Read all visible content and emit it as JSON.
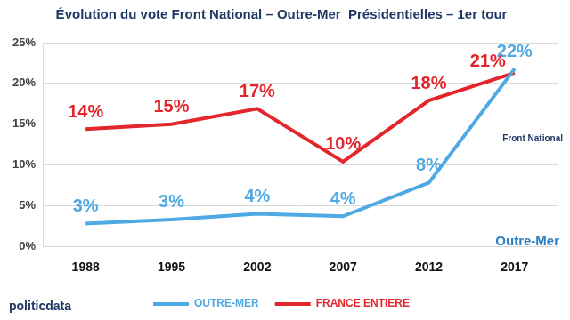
{
  "chart_data": {
    "type": "line",
    "title": "Évolution du vote Front National – Outre-Mer  Présidentielles – 1er tour",
    "categories": [
      "1988",
      "1995",
      "2002",
      "2007",
      "2012",
      "2017"
    ],
    "series": [
      {
        "name": "OUTRE-MER",
        "color": "#4fa9e3",
        "values": [
          2.8,
          3.3,
          4.0,
          3.7,
          7.8,
          21.8
        ],
        "value_labels": [
          "3%",
          "3%",
          "4%",
          "4%",
          "8%",
          "22%"
        ]
      },
      {
        "name": "FRANCE ENTIERE",
        "color": "#e3262c",
        "values": [
          14.4,
          15.0,
          16.9,
          10.4,
          17.9,
          21.3
        ],
        "value_labels": [
          "14%",
          "15%",
          "17%",
          "10%",
          "18%",
          "21%"
        ]
      }
    ],
    "ylim": [
      0,
      25
    ],
    "yticks": [
      {
        "value": 0,
        "label": "0%"
      },
      {
        "value": 5,
        "label": "5%"
      },
      {
        "value": 10,
        "label": "10%"
      },
      {
        "value": 15,
        "label": "15%"
      },
      {
        "value": 20,
        "label": "20%"
      },
      {
        "value": 25,
        "label": "25%"
      }
    ],
    "grid": true,
    "legend": "bottom",
    "data_labels": true,
    "annotations": [
      "Outre-Mer",
      "Front National",
      "politicdata"
    ]
  }
}
